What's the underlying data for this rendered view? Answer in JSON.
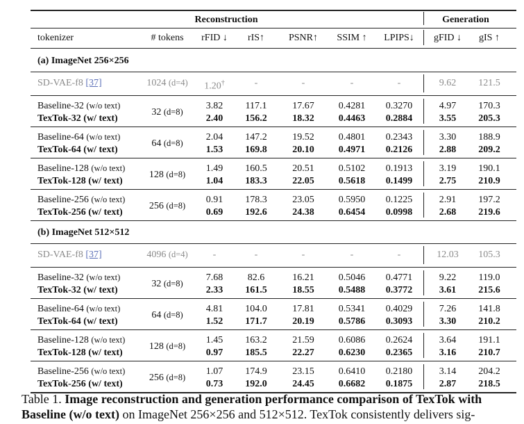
{
  "groups": {
    "reconstruction": "Reconstruction",
    "generation": "Generation"
  },
  "columns": [
    "tokenizer",
    "# tokens",
    "rFID ↓",
    "rIS↑",
    "PSNR↑",
    "SSIM ↑",
    "LPIPS↓",
    "gFID ↓",
    "gIS ↑"
  ],
  "sections": [
    {
      "title": "(a) ImageNet 256×256",
      "reference": {
        "name": "SD-VAE-f8",
        "cite": "[37]",
        "tokens": "1024",
        "d": "(d=4)",
        "values": [
          "1.20",
          "-",
          "-",
          "-",
          "-",
          "9.62",
          "121.5"
        ],
        "dagger": "†"
      },
      "pairs": [
        {
          "tokens": "32",
          "d": "(d=8)",
          "baseline": {
            "name": "Baseline-32",
            "tag": "(w/o text)",
            "values": [
              "3.82",
              "117.1",
              "17.67",
              "0.4281",
              "0.3270",
              "4.97",
              "170.3"
            ]
          },
          "textok": {
            "name": "TexTok-32",
            "tag": "(w/ text)",
            "values": [
              "2.40",
              "156.2",
              "18.32",
              "0.4463",
              "0.2884",
              "3.55",
              "205.3"
            ]
          }
        },
        {
          "tokens": "64",
          "d": "(d=8)",
          "baseline": {
            "name": "Baseline-64",
            "tag": "(w/o text)",
            "values": [
              "2.04",
              "147.2",
              "19.52",
              "0.4801",
              "0.2343",
              "3.30",
              "188.9"
            ]
          },
          "textok": {
            "name": "TexTok-64",
            "tag": "(w/ text)",
            "values": [
              "1.53",
              "169.8",
              "20.10",
              "0.4971",
              "0.2126",
              "2.88",
              "209.2"
            ]
          }
        },
        {
          "tokens": "128",
          "d": "(d=8)",
          "baseline": {
            "name": "Baseline-128",
            "tag": "(w/o text)",
            "values": [
              "1.49",
              "160.5",
              "20.51",
              "0.5102",
              "0.1913",
              "3.19",
              "190.1"
            ]
          },
          "textok": {
            "name": "TexTok-128",
            "tag": "(w/ text)",
            "values": [
              "1.04",
              "183.3",
              "22.05",
              "0.5618",
              "0.1499",
              "2.75",
              "210.9"
            ]
          }
        },
        {
          "tokens": "256",
          "d": "(d=8)",
          "baseline": {
            "name": "Baseline-256",
            "tag": "(w/o text)",
            "values": [
              "0.91",
              "178.3",
              "23.05",
              "0.5950",
              "0.1225",
              "2.91",
              "197.2"
            ]
          },
          "textok": {
            "name": "TexTok-256",
            "tag": "(w/ text)",
            "values": [
              "0.69",
              "192.6",
              "24.38",
              "0.6454",
              "0.0998",
              "2.68",
              "219.6"
            ]
          }
        }
      ]
    },
    {
      "title": "(b) ImageNet 512×512",
      "reference": {
        "name": "SD-VAE-f8",
        "cite": "[37]",
        "tokens": "4096",
        "d": "(d=4)",
        "values": [
          "-",
          "-",
          "-",
          "-",
          "-",
          "12.03",
          "105.3"
        ],
        "dagger": ""
      },
      "pairs": [
        {
          "tokens": "32",
          "d": "(d=8)",
          "baseline": {
            "name": "Baseline-32",
            "tag": "(w/o text)",
            "values": [
              "7.68",
              "82.6",
              "16.21",
              "0.5046",
              "0.4771",
              "9.22",
              "119.0"
            ]
          },
          "textok": {
            "name": "TexTok-32",
            "tag": "(w/ text)",
            "values": [
              "2.33",
              "161.5",
              "18.55",
              "0.5488",
              "0.3772",
              "3.61",
              "215.6"
            ]
          }
        },
        {
          "tokens": "64",
          "d": "(d=8)",
          "baseline": {
            "name": "Baseline-64",
            "tag": "(w/o text)",
            "values": [
              "4.81",
              "104.0",
              "17.81",
              "0.5341",
              "0.4029",
              "7.26",
              "141.8"
            ]
          },
          "textok": {
            "name": "TexTok-64",
            "tag": "(w/ text)",
            "values": [
              "1.52",
              "171.7",
              "20.19",
              "0.5786",
              "0.3093",
              "3.30",
              "210.2"
            ]
          }
        },
        {
          "tokens": "128",
          "d": "(d=8)",
          "baseline": {
            "name": "Baseline-128",
            "tag": "(w/o text)",
            "values": [
              "1.45",
              "163.2",
              "21.59",
              "0.6086",
              "0.2624",
              "3.64",
              "191.1"
            ]
          },
          "textok": {
            "name": "TexTok-128",
            "tag": "(w/ text)",
            "values": [
              "0.97",
              "185.5",
              "22.27",
              "0.6230",
              "0.2365",
              "3.16",
              "210.7"
            ]
          }
        },
        {
          "tokens": "256",
          "d": "(d=8)",
          "baseline": {
            "name": "Baseline-256",
            "tag": "(w/o text)",
            "values": [
              "1.07",
              "174.9",
              "23.15",
              "0.6410",
              "0.2180",
              "3.14",
              "204.2"
            ]
          },
          "textok": {
            "name": "TexTok-256",
            "tag": "(w/ text)",
            "values": [
              "0.73",
              "192.0",
              "24.45",
              "0.6682",
              "0.1875",
              "2.87",
              "218.5"
            ]
          }
        }
      ]
    }
  ],
  "caption": {
    "label": "Table 1.",
    "bold1": "Image reconstruction and generation performance comparison of TexTok with",
    "bold2": "Baseline (w/o text)",
    "rest": "on ImageNet 256×256 and 512×512. TexTok consistently delivers sig-"
  }
}
